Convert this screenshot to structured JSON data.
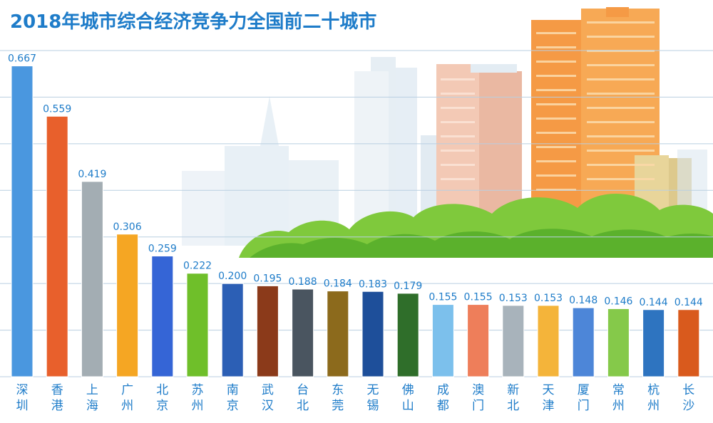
{
  "chart_data": {
    "type": "bar",
    "title": "2018年城市综合经济竞争力全国前二十城市",
    "xlabel": "",
    "ylabel": "",
    "ylim": [
      0,
      0.7
    ],
    "grid": true,
    "categories": [
      "深圳",
      "香港",
      "上海",
      "广州",
      "北京",
      "苏州",
      "南京",
      "武汉",
      "台北",
      "东莞",
      "无锡",
      "佛山",
      "成都",
      "澳门",
      "新北",
      "天津",
      "厦门",
      "常州",
      "杭州",
      "长沙"
    ],
    "values": [
      0.667,
      0.559,
      0.419,
      0.306,
      0.259,
      0.222,
      0.2,
      0.195,
      0.188,
      0.184,
      0.183,
      0.179,
      0.155,
      0.155,
      0.153,
      0.153,
      0.148,
      0.146,
      0.144,
      0.144
    ],
    "value_labels": [
      "0.667",
      "0.559",
      "0.419",
      "0.306",
      "0.259",
      "0.222",
      "0.200",
      "0.195",
      "0.188",
      "0.184",
      "0.183",
      "0.179",
      "0.155",
      "0.155",
      "0.153",
      "0.153",
      "0.148",
      "0.146",
      "0.144",
      "0.144"
    ],
    "colors": [
      "#4a97df",
      "#e8602c",
      "#a3adb3",
      "#f5a623",
      "#3565d6",
      "#6fbf2a",
      "#2c5fb5",
      "#8b3a1a",
      "#4a5560",
      "#8c6a1c",
      "#1e4f9a",
      "#2f6e2a",
      "#7cc0ec",
      "#ee7e5a",
      "#a8b3bb",
      "#f4b43a",
      "#4d86d8",
      "#85c94a",
      "#2e74c0",
      "#d95a1d"
    ],
    "label_color": "#1e7cc9",
    "axis_text_color": "#1e7cc9"
  }
}
